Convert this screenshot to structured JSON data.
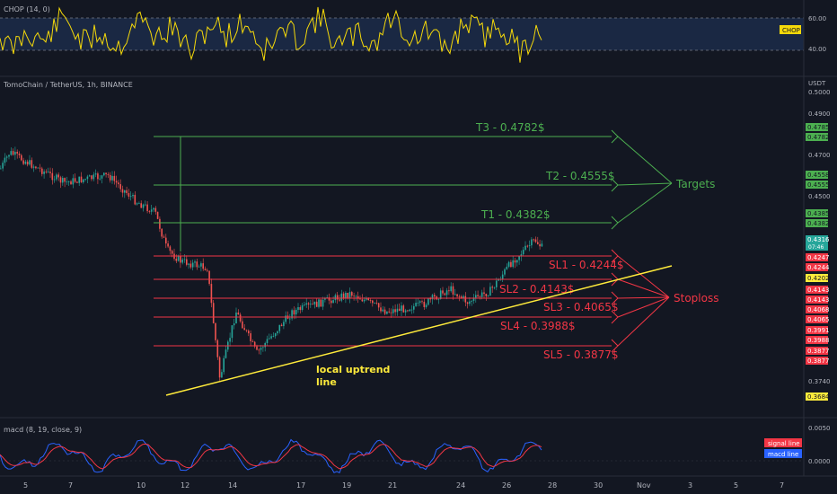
{
  "chop_panel": {
    "title": "CHOP (14, 0)",
    "badge": "CHOP",
    "ticks": [
      "60.00",
      "40.00"
    ],
    "band": [
      40,
      60
    ]
  },
  "main_panel": {
    "symbol": "TomoChain / TetherUS, 1h, BINANCE",
    "currency": "USDT",
    "y_ticks": [
      "0.5000",
      "0.4900",
      "0.4700",
      "0.4500",
      "0.3740"
    ],
    "current_price": "0.4316",
    "countdown": "07:46"
  },
  "levels": {
    "targets": [
      {
        "label": "T3 - 0.4782$",
        "price": 0.4782,
        "tag": "0.4782",
        "tag2": "0.4785"
      },
      {
        "label": "T2 - 0.4555$",
        "price": 0.4555,
        "tag": "0.4555",
        "tag2": "0.4558"
      },
      {
        "label": "T1 - 0.4382$",
        "price": 0.4382,
        "tag": "0.4382",
        "tag2": "0.4385"
      }
    ],
    "stoplosses": [
      {
        "label": "SL1 - 0.4244$",
        "price": 0.4244,
        "tag": "0.4244",
        "tag2": "0.4247"
      },
      {
        "label": "SL2 - 0.4143$",
        "price": 0.4143,
        "tag": "0.4143",
        "tag2": "0.4143"
      },
      {
        "label": "SL3 - 0.4065$",
        "price": 0.4065,
        "tag": "0.4065",
        "tag2": "0.4068"
      },
      {
        "label": "SL4 - 0.3988$",
        "price": 0.3988,
        "tag": "0.3988",
        "tag2": "0.3991"
      },
      {
        "label": "SL5 - 0.3877$",
        "price": 0.3877,
        "tag": "0.3877",
        "tag2": "0.3877"
      }
    ],
    "trendline_tag": "0.4202",
    "low_tag": "0.3684"
  },
  "annotations": {
    "targets_label": "Targets",
    "stoploss_label": "Stoploss",
    "trend_label_line1": "local uptrend",
    "trend_label_line2": "line"
  },
  "macd_panel": {
    "title": "macd (8, 19, close, 9)",
    "ticks": [
      "0.0050",
      "0.0000"
    ],
    "legend_signal": "signal line",
    "legend_macd": "macd line"
  },
  "x_axis": {
    "ticks": [
      "5",
      "7",
      "10",
      "12",
      "14",
      "17",
      "19",
      "21",
      "24",
      "26",
      "28",
      "30",
      "Nov",
      "3",
      "5",
      "7"
    ]
  },
  "colors": {
    "background": "#131722",
    "target": "#4caf50",
    "stoploss": "#f23645",
    "trendline": "#ffeb3b",
    "chop": "#f5d90a",
    "macd_line": "#2962ff",
    "signal_line": "#f23645",
    "candle_up": "#26a69a",
    "candle_down": "#ef5350"
  },
  "chart_data": {
    "type": "candlestick",
    "symbol": "TomoChain / TetherUS",
    "interval": "1h",
    "exchange": "BINANCE",
    "ylim": [
      0.3684,
      0.5
    ],
    "price_path": [
      {
        "x": "5",
        "y": 0.466
      },
      {
        "x": "5",
        "y": 0.473
      },
      {
        "x": "7",
        "y": 0.46
      },
      {
        "x": "7",
        "y": 0.463
      },
      {
        "x": "10",
        "y": 0.452
      },
      {
        "x": "10",
        "y": 0.447
      },
      {
        "x": "12",
        "y": 0.431
      },
      {
        "x": "12",
        "y": 0.426
      },
      {
        "x": "12",
        "y": 0.423
      },
      {
        "x": "14",
        "y": 0.375
      },
      {
        "x": "14",
        "y": 0.404
      },
      {
        "x": "14",
        "y": 0.386
      },
      {
        "x": "17",
        "y": 0.404
      },
      {
        "x": "17",
        "y": 0.412
      },
      {
        "x": "19",
        "y": 0.404
      },
      {
        "x": "21",
        "y": 0.407
      },
      {
        "x": "21",
        "y": 0.414
      },
      {
        "x": "24",
        "y": 0.408
      },
      {
        "x": "24",
        "y": 0.413
      },
      {
        "x": "26",
        "y": 0.426
      },
      {
        "x": "26",
        "y": 0.435
      },
      {
        "x": "26",
        "y": 0.4316
      }
    ],
    "trendline": [
      {
        "x": "12",
        "y": 0.3712
      },
      {
        "x": "28",
        "y": 0.4202
      }
    ]
  }
}
